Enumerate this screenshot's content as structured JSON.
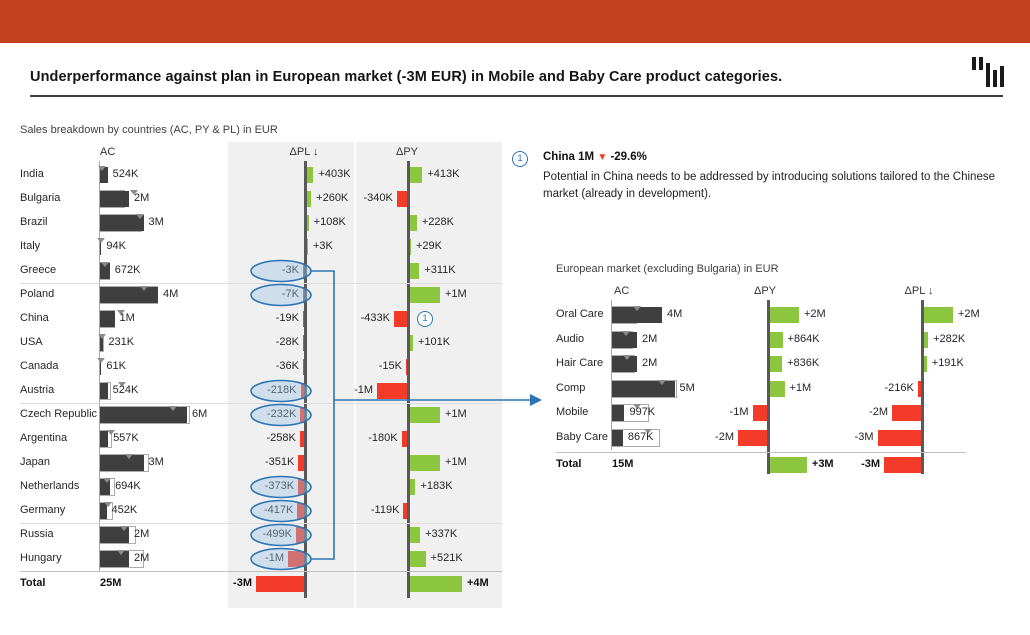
{
  "page": {
    "title": "Underperformance against plan in European market (-3M EUR) in Mobile and Baby Care product categories."
  },
  "colors": {
    "header_bar": "#C4411D",
    "positive": "#8CC63F",
    "negative": "#F43B29",
    "actual_bar": "#3F3F3F",
    "axis": "#595959",
    "highlight_blue": "#2E74B5",
    "highlight_fill": "rgba(155,194,230,0.40)",
    "column_bg": "#F0F0F0"
  },
  "logo": {
    "icon": "zebra-bi-bars-logo"
  },
  "annotation": {
    "number": "1",
    "headline": "China 1M",
    "trend_icon": "▼",
    "percent": "-29.6%",
    "body": "Potential in China needs to be addressed by introducing solutions tailored to the Chinese market (already in development)."
  },
  "chart_data": [
    {
      "type": "bar",
      "orientation": "horizontal",
      "title": "Sales breakdown by countries (AC, PY & PL) in EUR",
      "unit": "EUR thousands",
      "columns": [
        "AC",
        "ΔPL ↓",
        "ΔPY"
      ],
      "sorted_by": "ΔPL descending",
      "categories": [
        "India",
        "Bulgaria",
        "Brazil",
        "Italy",
        "Greece",
        "Poland",
        "China",
        "USA",
        "Canada",
        "Austria",
        "Czech Republic",
        "Argentina",
        "Japan",
        "Netherlands",
        "Germany",
        "Russia",
        "Hungary"
      ],
      "series": [
        {
          "name": "AC",
          "values": [
            524,
            2000,
            3000,
            94,
            672,
            4000,
            1000,
            231,
            61,
            524,
            6000,
            557,
            3000,
            694,
            452,
            2000,
            2000
          ],
          "labels": [
            "524K",
            "2M",
            "3M",
            "94K",
            "672K",
            "4M",
            "1M",
            "231K",
            "61K",
            "524K",
            "6M",
            "557K",
            "3M",
            "694K",
            "452K",
            "2M",
            "2M"
          ]
        },
        {
          "name": "ΔPL",
          "values": [
            403,
            260,
            108,
            3,
            -3,
            -7,
            -19,
            -28,
            -36,
            -218,
            -232,
            -258,
            -351,
            -373,
            -417,
            -499,
            -1000
          ],
          "labels": [
            "+403K",
            "+260K",
            "+108K",
            "+3K",
            "-3K",
            "-7K",
            "-19K",
            "-28K",
            "-36K",
            "-218K",
            "-232K",
            "-258K",
            "-351K",
            "-373K",
            "-417K",
            "-499K",
            "-1M"
          ]
        },
        {
          "name": "ΔPY",
          "values": [
            413,
            -340,
            228,
            29,
            311,
            1000,
            -433,
            101,
            -15,
            -1000,
            1000,
            -180,
            1000,
            183,
            -119,
            337,
            521
          ],
          "labels": [
            "+413K",
            "-340K",
            "+228K",
            "+29K",
            "+311K",
            "+1M",
            "-433K",
            "+101K",
            "-15K",
            "-1M",
            "+1M",
            "-180K",
            "+1M",
            "+183K",
            "-119K",
            "+337K",
            "+521K"
          ]
        }
      ],
      "total": {
        "label": "Total",
        "ac_label": "25M",
        "dpl_value": -3000,
        "dpl_label": "-3M",
        "dpy_value": 4000,
        "dpy_label": "+4M"
      },
      "highlighted_categories": [
        "Greece",
        "Poland",
        "Austria",
        "Czech Republic",
        "Netherlands",
        "Germany",
        "Russia",
        "Hungary"
      ],
      "annotation_marker": {
        "category": "China",
        "series": "ΔPY",
        "number": "1"
      },
      "group_separators_after": [
        "Greece",
        "Austria",
        "Germany"
      ]
    },
    {
      "type": "bar",
      "orientation": "horizontal",
      "title": "European market (excluding Bulgaria) in EUR",
      "unit": "EUR thousands",
      "columns": [
        "AC",
        "ΔPY",
        "ΔPL ↓"
      ],
      "categories": [
        "Oral Care",
        "Audio",
        "Hair Care",
        "Comp",
        "Mobile",
        "Baby Care"
      ],
      "series": [
        {
          "name": "AC",
          "values": [
            4000,
            2000,
            2000,
            5000,
            997,
            867
          ],
          "labels": [
            "4M",
            "2M",
            "2M",
            "5M",
            "997K",
            "867K"
          ]
        },
        {
          "name": "ΔPY",
          "values": [
            2000,
            864,
            836,
            1000,
            -1000,
            -2000
          ],
          "labels": [
            "+2M",
            "+864K",
            "+836K",
            "+1M",
            "-1M",
            "-2M"
          ]
        },
        {
          "name": "ΔPL",
          "values": [
            2000,
            282,
            191,
            -216,
            -2000,
            -3000
          ],
          "labels": [
            "+2M",
            "+282K",
            "+191K",
            "-216K",
            "-2M",
            "-3M"
          ]
        }
      ],
      "total": {
        "label": "Total",
        "ac_label": "15M",
        "dpy_value": 3000,
        "dpy_label": "+3M",
        "dpl_value": -3000,
        "dpl_label": "-3M"
      }
    }
  ]
}
